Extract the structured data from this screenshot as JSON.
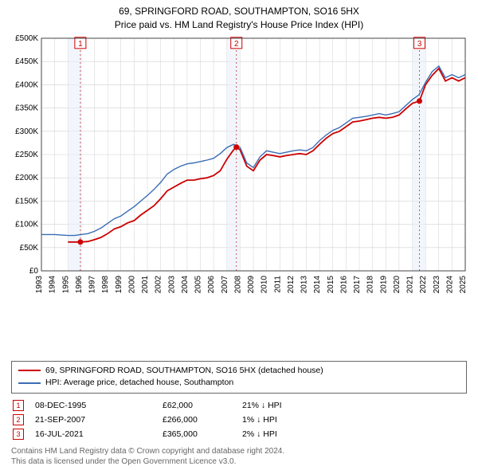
{
  "title_line1": "69, SPRINGFORD ROAD, SOUTHAMPTON, SO16 5HX",
  "title_line2": "Price paid vs. HM Land Registry's House Price Index (HPI)",
  "chart": {
    "type": "line",
    "background_color": "#ffffff",
    "plot_background": "#ffffff",
    "grid_color": "#d0d0d0",
    "axis_color": "#444444",
    "vline_color": "#cc4444",
    "vline_dash": "2,3",
    "x_min_year": 1993,
    "x_max_year": 2025,
    "x_ticks": [
      1993,
      1994,
      1995,
      1996,
      1997,
      1998,
      1999,
      2000,
      2001,
      2002,
      2003,
      2004,
      2005,
      2006,
      2007,
      2008,
      2009,
      2010,
      2011,
      2012,
      2013,
      2014,
      2015,
      2016,
      2017,
      2018,
      2019,
      2020,
      2021,
      2022,
      2023,
      2024,
      2025
    ],
    "y_min": 0,
    "y_max": 500000,
    "y_tick_step": 50000,
    "y_tick_labels": [
      "£0",
      "£50K",
      "£100K",
      "£150K",
      "£200K",
      "£250K",
      "£300K",
      "£350K",
      "£400K",
      "£450K",
      "£500K"
    ],
    "series": [
      {
        "name": "property",
        "color": "#cc0000",
        "line_width": 1.8,
        "points": [
          [
            1995.0,
            62000
          ],
          [
            1995.94,
            62000
          ],
          [
            1996.5,
            63000
          ],
          [
            1997.0,
            67000
          ],
          [
            1997.5,
            72000
          ],
          [
            1998.0,
            80000
          ],
          [
            1998.5,
            90000
          ],
          [
            1999.0,
            95000
          ],
          [
            1999.5,
            103000
          ],
          [
            2000.0,
            108000
          ],
          [
            2000.5,
            120000
          ],
          [
            2001.0,
            130000
          ],
          [
            2001.5,
            140000
          ],
          [
            2002.0,
            155000
          ],
          [
            2002.5,
            172000
          ],
          [
            2003.0,
            180000
          ],
          [
            2003.5,
            188000
          ],
          [
            2004.0,
            195000
          ],
          [
            2004.5,
            195000
          ],
          [
            2005.0,
            198000
          ],
          [
            2005.5,
            200000
          ],
          [
            2006.0,
            205000
          ],
          [
            2006.5,
            215000
          ],
          [
            2007.0,
            240000
          ],
          [
            2007.5,
            260000
          ],
          [
            2007.72,
            266000
          ],
          [
            2008.0,
            260000
          ],
          [
            2008.5,
            225000
          ],
          [
            2009.0,
            215000
          ],
          [
            2009.5,
            238000
          ],
          [
            2010.0,
            250000
          ],
          [
            2010.5,
            248000
          ],
          [
            2011.0,
            245000
          ],
          [
            2011.5,
            248000
          ],
          [
            2012.0,
            250000
          ],
          [
            2012.5,
            252000
          ],
          [
            2013.0,
            250000
          ],
          [
            2013.5,
            258000
          ],
          [
            2014.0,
            272000
          ],
          [
            2014.5,
            285000
          ],
          [
            2015.0,
            295000
          ],
          [
            2015.5,
            300000
          ],
          [
            2016.0,
            310000
          ],
          [
            2016.5,
            320000
          ],
          [
            2017.0,
            322000
          ],
          [
            2017.5,
            325000
          ],
          [
            2018.0,
            328000
          ],
          [
            2018.5,
            330000
          ],
          [
            2019.0,
            328000
          ],
          [
            2019.5,
            330000
          ],
          [
            2020.0,
            335000
          ],
          [
            2020.5,
            348000
          ],
          [
            2021.0,
            360000
          ],
          [
            2021.54,
            365000
          ],
          [
            2022.0,
            400000
          ],
          [
            2022.5,
            420000
          ],
          [
            2023.0,
            435000
          ],
          [
            2023.5,
            408000
          ],
          [
            2024.0,
            415000
          ],
          [
            2024.5,
            408000
          ],
          [
            2025.0,
            415000
          ]
        ]
      },
      {
        "name": "hpi",
        "color": "#3b6db5",
        "line_width": 1.4,
        "points": [
          [
            1993.0,
            78000
          ],
          [
            1994.0,
            78000
          ],
          [
            1995.0,
            76000
          ],
          [
            1995.5,
            76000
          ],
          [
            1996.0,
            78000
          ],
          [
            1996.5,
            80000
          ],
          [
            1997.0,
            85000
          ],
          [
            1997.5,
            92000
          ],
          [
            1998.0,
            102000
          ],
          [
            1998.5,
            112000
          ],
          [
            1999.0,
            118000
          ],
          [
            1999.5,
            128000
          ],
          [
            2000.0,
            138000
          ],
          [
            2000.5,
            150000
          ],
          [
            2001.0,
            162000
          ],
          [
            2001.5,
            175000
          ],
          [
            2002.0,
            190000
          ],
          [
            2002.5,
            208000
          ],
          [
            2003.0,
            218000
          ],
          [
            2003.5,
            225000
          ],
          [
            2004.0,
            230000
          ],
          [
            2004.5,
            232000
          ],
          [
            2005.0,
            235000
          ],
          [
            2005.5,
            238000
          ],
          [
            2006.0,
            242000
          ],
          [
            2006.5,
            252000
          ],
          [
            2007.0,
            265000
          ],
          [
            2007.5,
            272000
          ],
          [
            2008.0,
            265000
          ],
          [
            2008.5,
            232000
          ],
          [
            2009.0,
            222000
          ],
          [
            2009.5,
            245000
          ],
          [
            2010.0,
            258000
          ],
          [
            2010.5,
            255000
          ],
          [
            2011.0,
            252000
          ],
          [
            2011.5,
            255000
          ],
          [
            2012.0,
            258000
          ],
          [
            2012.5,
            260000
          ],
          [
            2013.0,
            258000
          ],
          [
            2013.5,
            265000
          ],
          [
            2014.0,
            280000
          ],
          [
            2014.5,
            292000
          ],
          [
            2015.0,
            302000
          ],
          [
            2015.5,
            308000
          ],
          [
            2016.0,
            318000
          ],
          [
            2016.5,
            328000
          ],
          [
            2017.0,
            330000
          ],
          [
            2017.5,
            332000
          ],
          [
            2018.0,
            335000
          ],
          [
            2018.5,
            338000
          ],
          [
            2019.0,
            335000
          ],
          [
            2019.5,
            338000
          ],
          [
            2020.0,
            342000
          ],
          [
            2020.5,
            355000
          ],
          [
            2021.0,
            368000
          ],
          [
            2021.5,
            378000
          ],
          [
            2022.0,
            405000
          ],
          [
            2022.5,
            428000
          ],
          [
            2023.0,
            440000
          ],
          [
            2023.5,
            415000
          ],
          [
            2024.0,
            422000
          ],
          [
            2024.5,
            415000
          ],
          [
            2025.0,
            422000
          ]
        ]
      }
    ],
    "markers": [
      {
        "num": "1",
        "year": 1995.94,
        "value": 62000,
        "label_y": 490000
      },
      {
        "num": "2",
        "year": 2007.72,
        "value": 266000,
        "label_y": 490000
      },
      {
        "num": "3",
        "year": 2021.54,
        "value": 365000,
        "label_y": 490000
      }
    ],
    "marker_box_border": "#cc0000",
    "marker_box_text": "#cc0000",
    "marker_dot_color": "#cc0000"
  },
  "legend": {
    "items": [
      {
        "label": "69, SPRINGFORD ROAD, SOUTHAMPTON, SO16 5HX (detached house)",
        "color": "#cc0000"
      },
      {
        "label": "HPI: Average price, detached house, Southampton",
        "color": "#3b6db5"
      }
    ]
  },
  "callouts": [
    {
      "num": "1",
      "date": "08-DEC-1995",
      "price": "£62,000",
      "delta": "21% ↓ HPI"
    },
    {
      "num": "2",
      "date": "21-SEP-2007",
      "price": "£266,000",
      "delta": "1% ↓ HPI"
    },
    {
      "num": "3",
      "date": "16-JUL-2021",
      "price": "£365,000",
      "delta": "2% ↓ HPI"
    }
  ],
  "footer_line1": "Contains HM Land Registry data © Crown copyright and database right 2024.",
  "footer_line2": "This data is licensed under the Open Government Licence v3.0."
}
